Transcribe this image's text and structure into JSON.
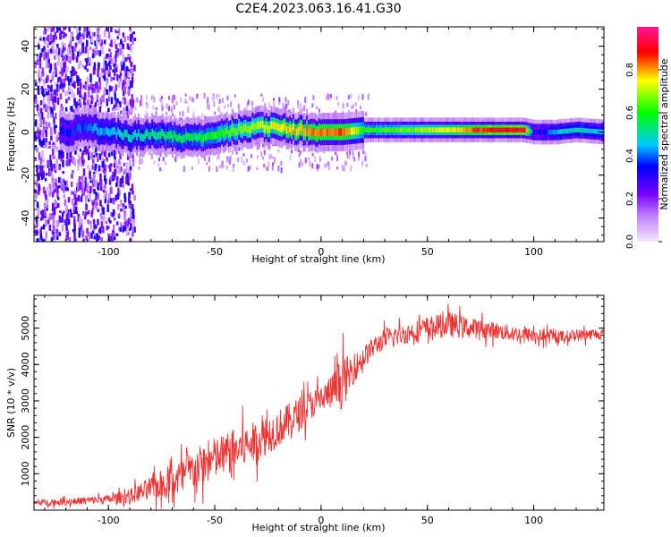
{
  "figure": {
    "title": "C2E4.2023.063.16.41.G30"
  },
  "chart_data": [
    {
      "type": "heatmap",
      "xlabel": "Height of straight line (km)",
      "ylabel": "Frequency (Hz)",
      "xlim": [
        -135,
        133
      ],
      "ylim": [
        -51,
        49
      ],
      "xticks": [
        -100,
        -50,
        0,
        50,
        100
      ],
      "yticks": [
        -40,
        -20,
        0,
        20,
        40
      ],
      "grid": false,
      "colorbar": {
        "label": "Normalized spectral amplitude",
        "range": [
          0,
          1
        ],
        "ticks": [
          "0.0",
          "0.2",
          "0.4",
          "0.6",
          "0.8"
        ],
        "colors": [
          "#f2e6fa",
          "#7a00ff",
          "#0000ff",
          "#00ffff",
          "#00ff00",
          "#ffff00",
          "#ff0000",
          "#ff1493"
        ]
      },
      "ridge": {
        "x": [
          -120,
          -110,
          -100,
          -90,
          -80,
          -70,
          -60,
          -50,
          -40,
          -30,
          -20,
          -10,
          0,
          10,
          20,
          40,
          60,
          80,
          95,
          100,
          110,
          120,
          133
        ],
        "freq": [
          0,
          2,
          0,
          -2,
          -1,
          -2,
          -3,
          -1,
          1,
          3,
          2,
          1,
          0,
          0,
          1,
          1,
          1,
          1,
          1,
          0,
          0,
          1,
          0
        ],
        "amplitude": [
          0.35,
          0.4,
          0.45,
          0.5,
          0.52,
          0.55,
          0.55,
          0.6,
          0.65,
          0.7,
          0.75,
          0.8,
          0.82,
          0.85,
          0.6,
          0.65,
          0.75,
          0.9,
          0.92,
          0.3,
          0.45,
          0.5,
          0.45
        ]
      }
    },
    {
      "type": "line",
      "xlabel": "Height of straight line (km)",
      "ylabel": "SNR (10 * v/v)",
      "xlim": [
        -135,
        133
      ],
      "ylim": [
        0,
        5900
      ],
      "xticks": [
        -100,
        -50,
        0,
        50,
        100
      ],
      "yticks": [
        1000,
        2000,
        3000,
        4000,
        5000
      ],
      "grid": false,
      "color": "#ee3333",
      "series": [
        {
          "x": [
            -135,
            -120,
            -100,
            -90,
            -80,
            -70,
            -60,
            -50,
            -40,
            -30,
            -20,
            -10,
            -5,
            0,
            5,
            10,
            15,
            20,
            25,
            30,
            40,
            50,
            55,
            60,
            70,
            80,
            90,
            100,
            110,
            120,
            133
          ],
          "values": [
            200,
            230,
            300,
            380,
            600,
            800,
            1100,
            1400,
            1650,
            1900,
            2250,
            2650,
            2900,
            3050,
            3250,
            3500,
            3850,
            4200,
            4500,
            4700,
            4850,
            5000,
            5050,
            5100,
            5000,
            4950,
            4850,
            4800,
            4750,
            4800,
            4850
          ],
          "noise": [
            100,
            120,
            150,
            250,
            400,
            600,
            700,
            750,
            750,
            700,
            650,
            600,
            500,
            500,
            600,
            900,
            500,
            400,
            350,
            350,
            350,
            400,
            400,
            450,
            350,
            300,
            280,
            250,
            220,
            200,
            200
          ]
        }
      ]
    }
  ]
}
